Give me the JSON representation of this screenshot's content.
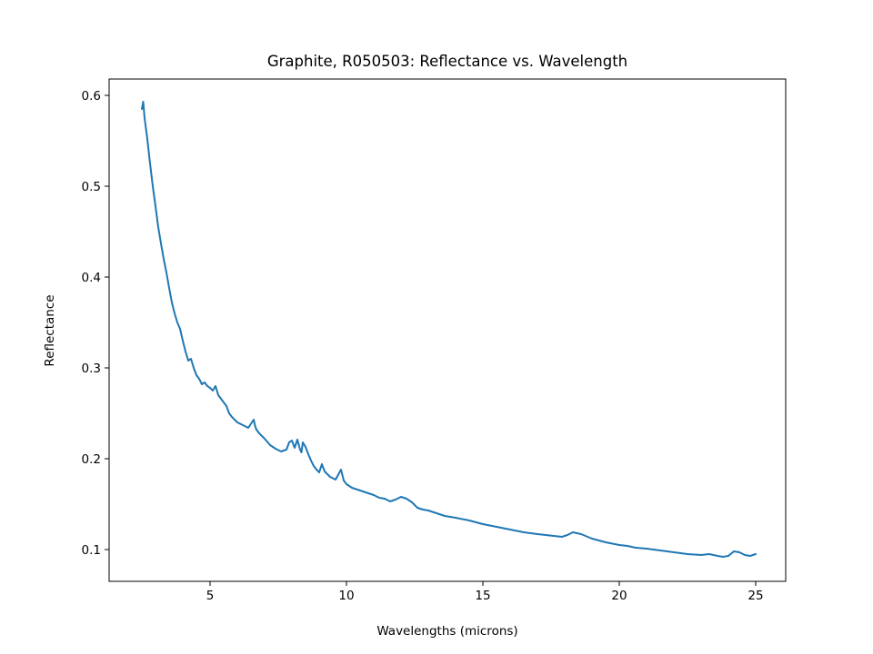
{
  "chart_data": {
    "type": "line",
    "title": "Graphite, R050503: Reflectance vs. Wavelength",
    "xlabel": "Wavelengths (microns)",
    "ylabel": "Reflectance",
    "xlim": [
      1.3,
      26.1
    ],
    "ylim": [
      0.065,
      0.618
    ],
    "xticks": [
      5,
      10,
      15,
      20,
      25
    ],
    "xtick_labels": [
      "5",
      "10",
      "15",
      "20",
      "25"
    ],
    "yticks": [
      0.1,
      0.2,
      0.3,
      0.4,
      0.5,
      0.6
    ],
    "ytick_labels": [
      "0.1",
      "0.2",
      "0.3",
      "0.4",
      "0.5",
      "0.6"
    ],
    "grid": false,
    "legend": false,
    "series": [
      {
        "color": "#1f77b4",
        "x": [
          2.5,
          2.55,
          2.6,
          2.7,
          2.8,
          2.9,
          3.0,
          3.1,
          3.2,
          3.3,
          3.4,
          3.5,
          3.6,
          3.7,
          3.8,
          3.9,
          4.0,
          4.1,
          4.2,
          4.3,
          4.4,
          4.5,
          4.6,
          4.7,
          4.8,
          4.9,
          5.0,
          5.1,
          5.2,
          5.3,
          5.4,
          5.5,
          5.6,
          5.65,
          5.7,
          5.8,
          6.0,
          6.2,
          6.4,
          6.6,
          6.65,
          6.7,
          6.8,
          7.0,
          7.2,
          7.4,
          7.6,
          7.8,
          7.9,
          8.0,
          8.1,
          8.2,
          8.3,
          8.35,
          8.4,
          8.5,
          8.6,
          8.7,
          8.8,
          8.9,
          9.0,
          9.1,
          9.2,
          9.3,
          9.4,
          9.6,
          9.8,
          9.85,
          9.9,
          10.0,
          10.2,
          10.5,
          10.8,
          11.0,
          11.2,
          11.4,
          11.6,
          11.8,
          12.0,
          12.2,
          12.4,
          12.6,
          12.8,
          13.0,
          13.3,
          13.6,
          14.0,
          14.5,
          15.0,
          15.5,
          16.0,
          16.5,
          17.0,
          17.3,
          17.6,
          17.9,
          18.1,
          18.3,
          18.6,
          19.0,
          19.5,
          20.0,
          20.3,
          20.6,
          21.0,
          21.5,
          22.0,
          22.5,
          23.0,
          23.3,
          23.6,
          23.8,
          24.0,
          24.2,
          24.4,
          24.6,
          24.8,
          25.0
        ],
        "y": [
          0.585,
          0.593,
          0.575,
          0.552,
          0.525,
          0.5,
          0.478,
          0.455,
          0.437,
          0.42,
          0.405,
          0.388,
          0.372,
          0.36,
          0.35,
          0.343,
          0.33,
          0.318,
          0.308,
          0.31,
          0.3,
          0.292,
          0.288,
          0.282,
          0.284,
          0.28,
          0.278,
          0.275,
          0.28,
          0.27,
          0.266,
          0.262,
          0.258,
          0.254,
          0.25,
          0.246,
          0.24,
          0.237,
          0.234,
          0.243,
          0.236,
          0.232,
          0.228,
          0.222,
          0.215,
          0.211,
          0.208,
          0.21,
          0.218,
          0.22,
          0.212,
          0.221,
          0.21,
          0.207,
          0.218,
          0.213,
          0.205,
          0.198,
          0.192,
          0.188,
          0.185,
          0.194,
          0.186,
          0.183,
          0.18,
          0.177,
          0.188,
          0.182,
          0.176,
          0.172,
          0.168,
          0.165,
          0.162,
          0.16,
          0.157,
          0.156,
          0.153,
          0.155,
          0.158,
          0.156,
          0.152,
          0.146,
          0.144,
          0.143,
          0.14,
          0.137,
          0.135,
          0.132,
          0.128,
          0.125,
          0.122,
          0.119,
          0.117,
          0.116,
          0.115,
          0.114,
          0.116,
          0.119,
          0.117,
          0.112,
          0.108,
          0.105,
          0.104,
          0.102,
          0.101,
          0.099,
          0.097,
          0.095,
          0.094,
          0.095,
          0.093,
          0.092,
          0.093,
          0.098,
          0.097,
          0.094,
          0.093,
          0.095
        ]
      }
    ]
  }
}
